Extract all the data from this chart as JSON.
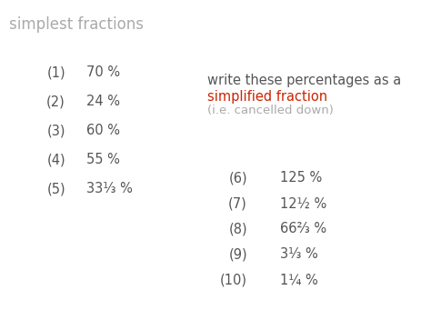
{
  "title": "simplest fractions",
  "title_color": "#aaaaaa",
  "title_fontsize": 12,
  "background_color": "#ffffff",
  "text_color": "#555555",
  "red_color": "#cc2200",
  "left_items": [
    {
      "num": "(1)",
      "val": "70 %"
    },
    {
      "num": "(2)",
      "val": "24 %"
    },
    {
      "num": "(3)",
      "val": "60 %"
    },
    {
      "num": "(4)",
      "val": "55 %"
    },
    {
      "num": "(5)",
      "val": "33⅓ %"
    }
  ],
  "right_items": [
    {
      "num": "(6)",
      "val": "125 %"
    },
    {
      "num": "(7)",
      "val": "12½ %"
    },
    {
      "num": "(8)",
      "val": "66⅔ %"
    },
    {
      "num": "(9)",
      "val": "3⅓ %"
    },
    {
      "num": "(10)",
      "val": "1¼ %"
    }
  ],
  "instruction_line1": "write these percentages as a",
  "instruction_line2": "simplified fraction",
  "instruction_line3": "(i.e. cancelled down)",
  "fontsize": 10.5,
  "small_fontsize": 9.5,
  "fig_width": 4.74,
  "fig_height": 3.52,
  "dpi": 100
}
